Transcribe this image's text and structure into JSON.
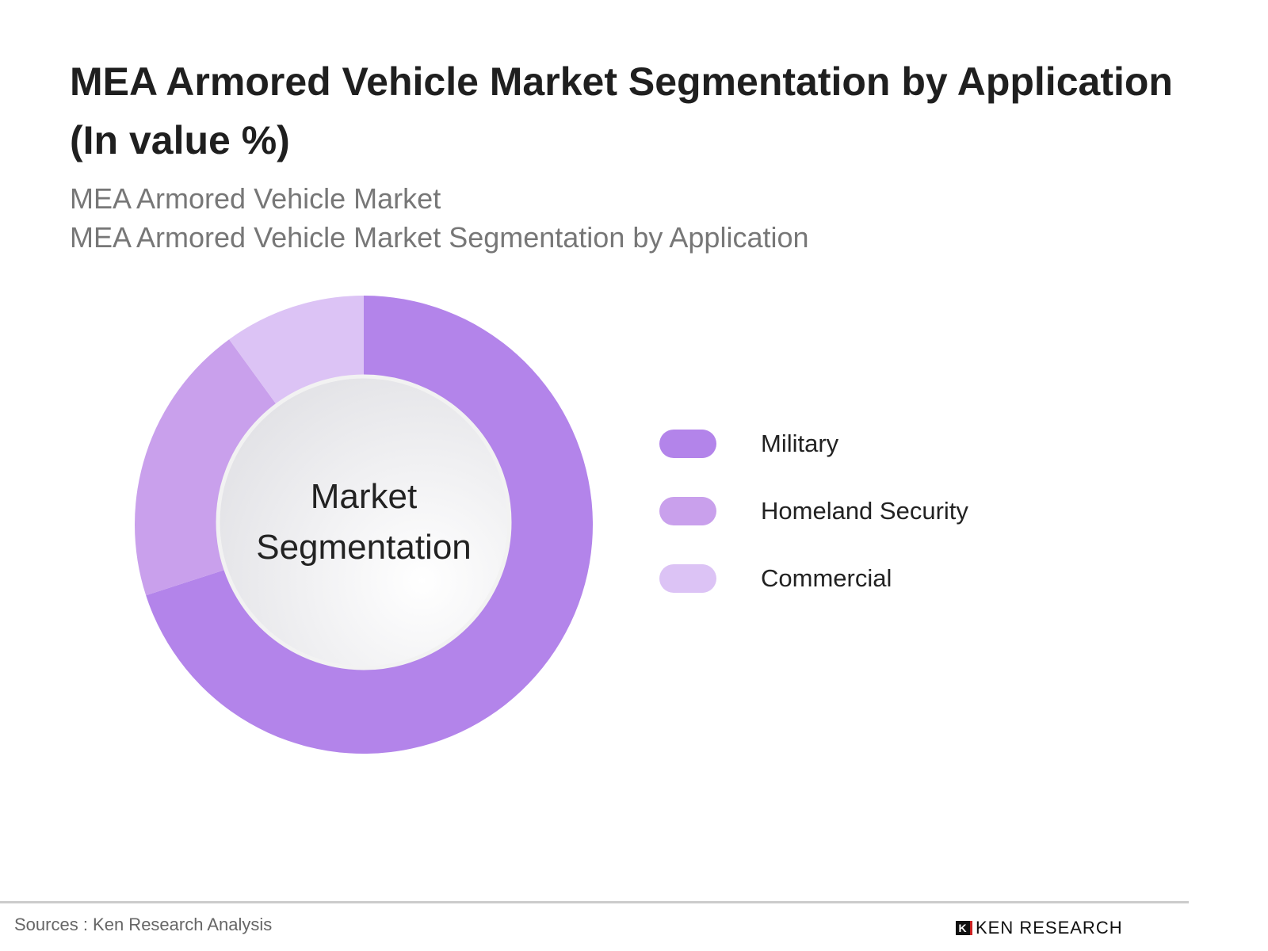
{
  "chart_data": {
    "type": "pie",
    "subtype": "donut",
    "title": "MEA Armored Vehicle Market Segmentation by Application (In value %)",
    "subtitles": [
      "MEA Armored Vehicle Market",
      "MEA Armored Vehicle Market Segmentation by Application"
    ],
    "center_label": [
      "Market",
      "Segmentation"
    ],
    "categories": [
      "Military",
      "Homeland Security",
      "Commercial"
    ],
    "values": [
      70,
      20,
      10
    ],
    "colors": [
      "#b384ea",
      "#c9a0ec",
      "#dcc3f5"
    ],
    "legend_position": "right"
  },
  "footer": {
    "source": "Sources : Ken Research Analysis",
    "logo": "KEN RESEARCH",
    "logo_mark": "K"
  }
}
